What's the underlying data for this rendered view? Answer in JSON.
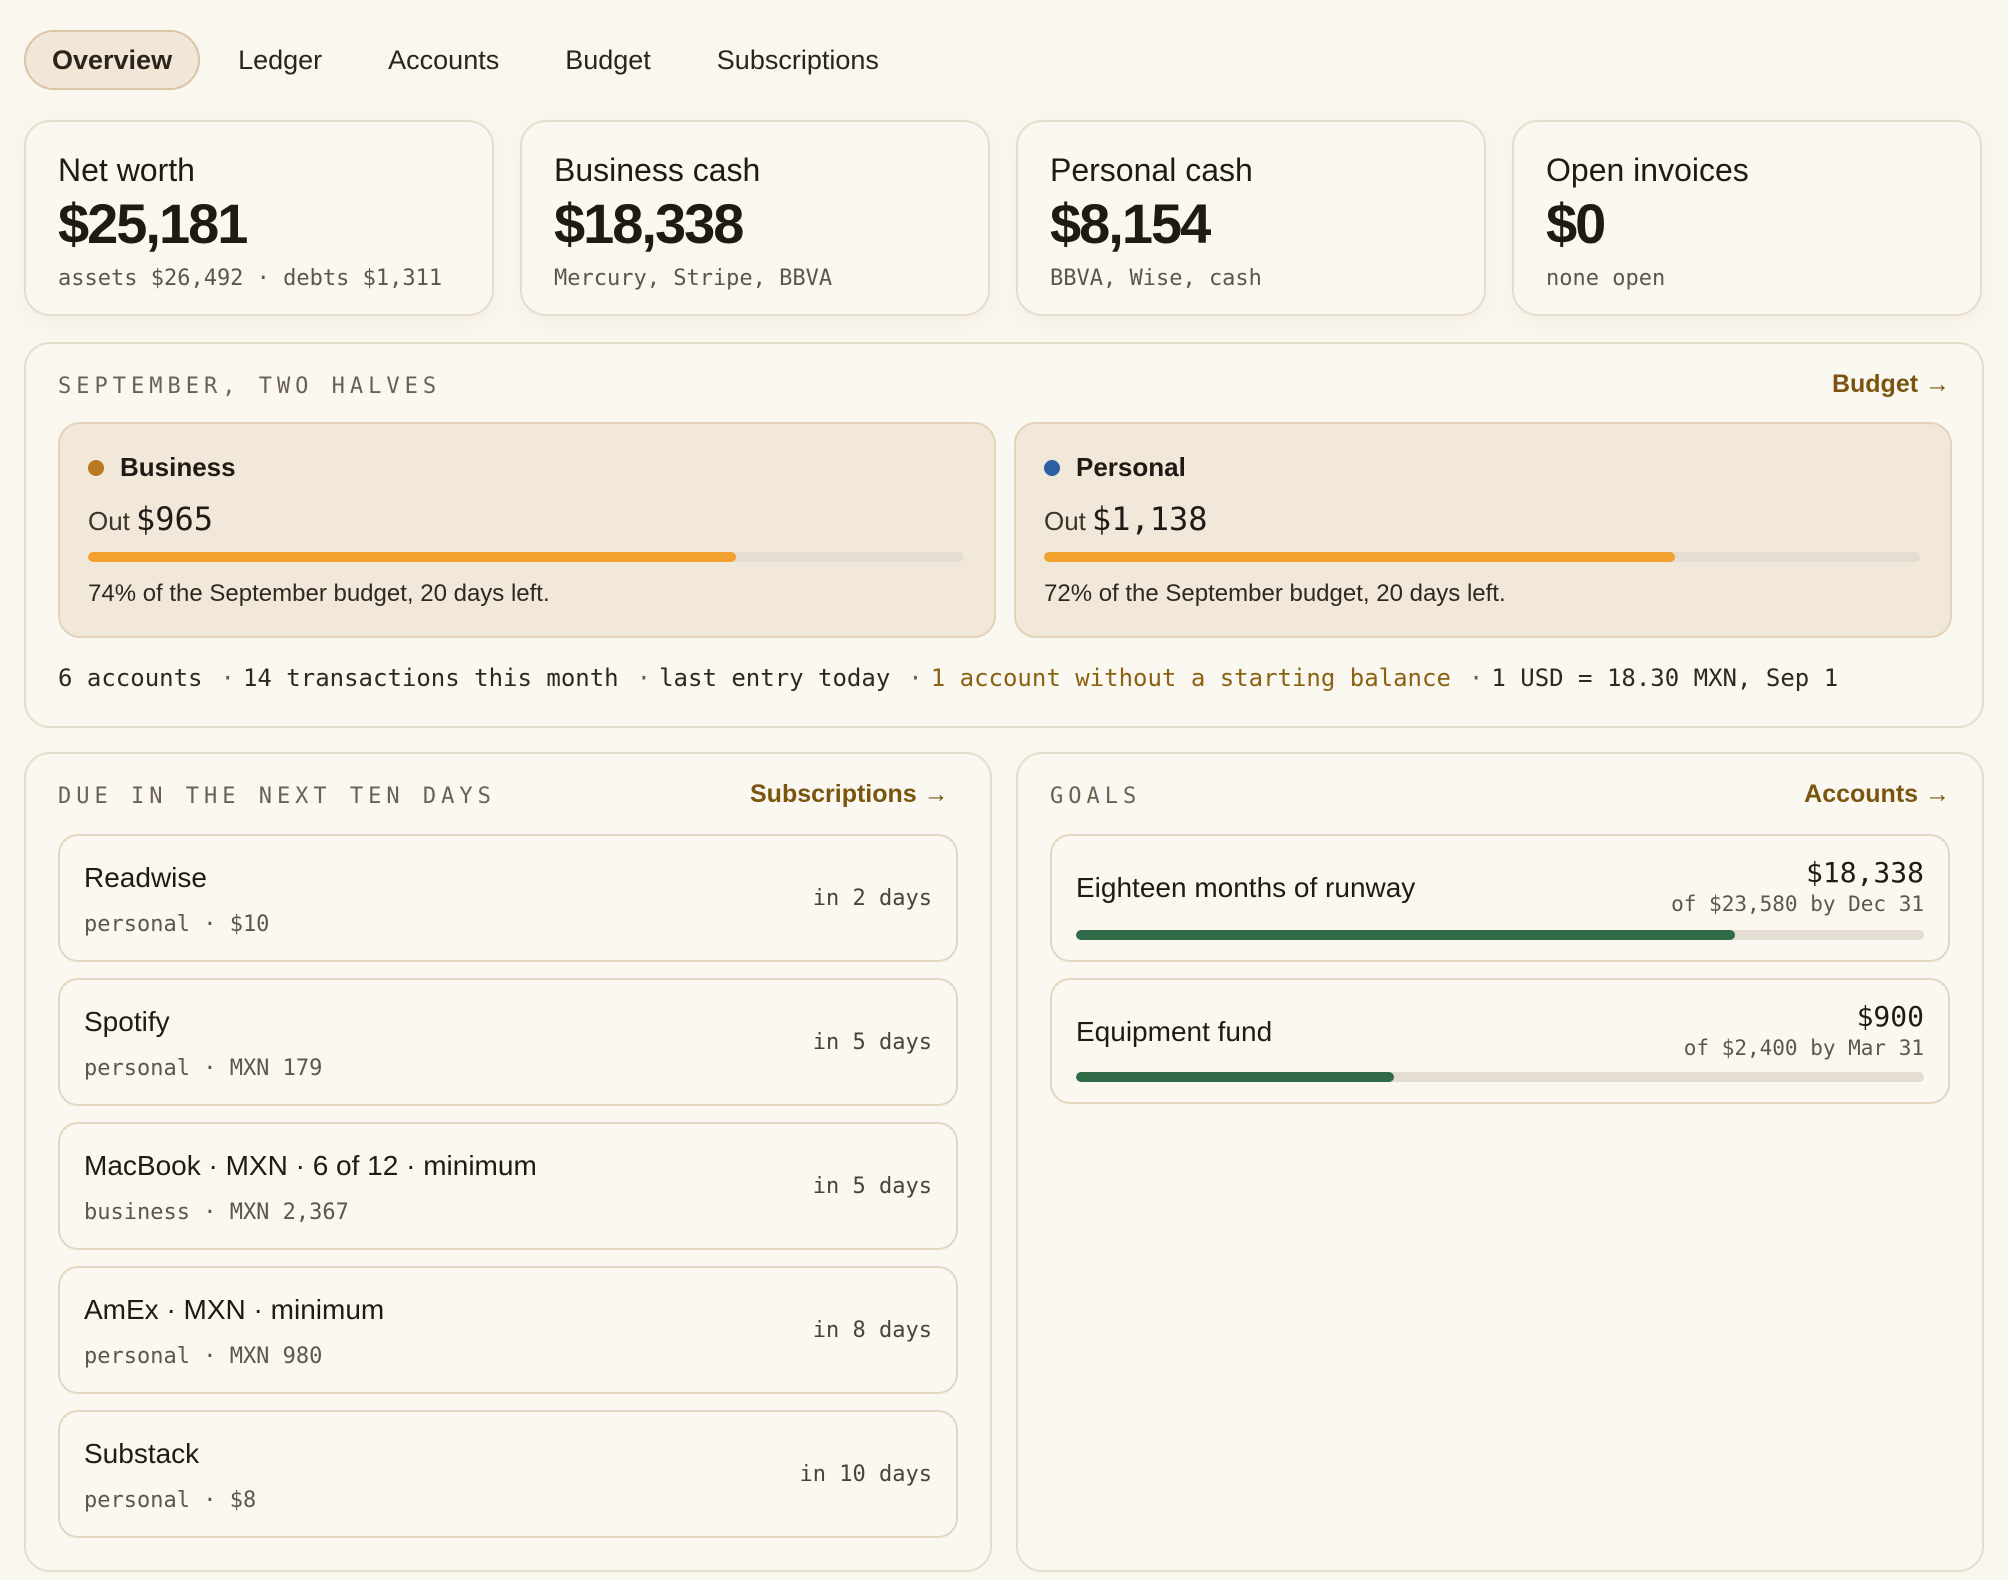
{
  "tabs": [
    {
      "label": "Overview",
      "active": true
    },
    {
      "label": "Ledger"
    },
    {
      "label": "Accounts"
    },
    {
      "label": "Budget"
    },
    {
      "label": "Subscriptions"
    }
  ],
  "stats": [
    {
      "label": "Net worth",
      "value": "$25,181",
      "sub": "assets $26,492 · debts $1,311"
    },
    {
      "label": "Business cash",
      "value": "$18,338",
      "sub": "Mercury, Stripe, BBVA"
    },
    {
      "label": "Personal cash",
      "value": "$8,154",
      "sub": "BBVA, Wise, cash"
    },
    {
      "label": "Open invoices",
      "value": "$0",
      "sub": "none open"
    }
  ],
  "september": {
    "title": "SEPTEMBER, TWO HALVES",
    "link": "Budget →",
    "halves": [
      {
        "name": "Business",
        "out_label": "Out",
        "out": "$965",
        "progress": 0.74,
        "note": "74% of the September budget, 20 days left.",
        "dot_color": "#b7791f",
        "bar_color": "#f2a12e"
      },
      {
        "name": "Personal",
        "out_label": "Out",
        "out": "$1,138",
        "progress": 0.72,
        "note": "72% of the September budget, 20 days left.",
        "dot_color": "#2e5fa6",
        "bar_color": "#f2a12e"
      }
    ],
    "meta": {
      "accounts": "6 accounts",
      "transactions": "14 transactions this month",
      "last_entry": "last entry today",
      "warning": "1 account without a starting balance",
      "fx": "1 USD = 18.30 MXN, Sep 1",
      "separator": "·"
    }
  },
  "due": {
    "title": "DUE IN THE NEXT TEN DAYS",
    "link": "Subscriptions →",
    "items": [
      {
        "title": "Readwise",
        "sub": "personal · $10",
        "when": "in 2 days"
      },
      {
        "title": "Spotify",
        "sub": "personal · MXN 179",
        "when": "in 5 days"
      },
      {
        "title": "MacBook · MXN · 6 of 12 · minimum",
        "sub": "business · MXN 2,367",
        "when": "in 5 days"
      },
      {
        "title": "AmEx · MXN · minimum",
        "sub": "personal · MXN 980",
        "when": "in 8 days"
      },
      {
        "title": "Substack",
        "sub": "personal · $8",
        "when": "in 10 days"
      }
    ]
  },
  "goals": {
    "title": "GOALS",
    "link": "Accounts →",
    "bar_color": "#2f6b47",
    "items": [
      {
        "name": "Eighteen months of runway",
        "amount": "$18,338",
        "target": "of $23,580 by Dec 31",
        "progress": 0.7777
      },
      {
        "name": "Equipment fund",
        "amount": "$900",
        "target": "of $2,400 by Mar 31",
        "progress": 0.375
      }
    ]
  }
}
